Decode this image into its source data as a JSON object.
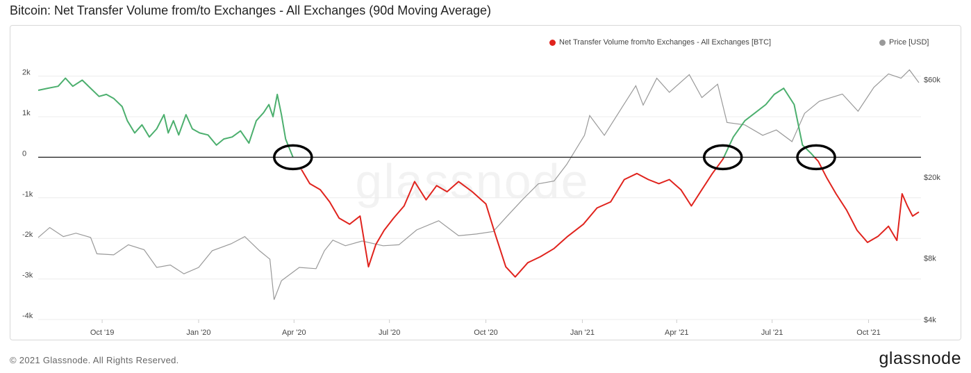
{
  "header": {
    "title": "Bitcoin: Net Transfer Volume from/to Exchanges - All Exchanges (90d Moving Average)"
  },
  "footer": {
    "copyright": "© 2021 Glassnode. All Rights Reserved.",
    "logo": "glassnode"
  },
  "watermark": "glassnode",
  "colors": {
    "positive": "#4caf6e",
    "negative": "#e0231d",
    "price": "#999999",
    "zero_line": "#1a1a1a",
    "circle": "#000000"
  },
  "chart_data": {
    "type": "line",
    "title": "Bitcoin: Net Transfer Volume from/to Exchanges - All Exchanges (90d Moving Average)",
    "legend": [
      {
        "name": "Net Transfer Volume from/to Exchanges - All Exchanges [BTC]",
        "color": "#e0231d"
      },
      {
        "name": "Price [USD]",
        "color": "#999999"
      }
    ],
    "legend_position": "top-right",
    "x_ticks": [
      "Oct '19",
      "Jan '20",
      "Apr '20",
      "Jul '20",
      "Oct '20",
      "Jan '21",
      "Apr '21",
      "Jul '21",
      "Oct '21"
    ],
    "x_tick_dates": [
      "2019-10-01",
      "2020-01-01",
      "2020-04-01",
      "2020-07-01",
      "2020-10-01",
      "2021-01-01",
      "2021-04-01",
      "2021-07-01",
      "2021-10-01"
    ],
    "xlim": [
      "2019-08-01",
      "2021-11-20"
    ],
    "y_left": {
      "ticks": [
        "2k",
        "1k",
        "0",
        "-1k",
        "-2k",
        "-3k",
        "-4k"
      ],
      "tick_values": [
        2000,
        1000,
        0,
        -1000,
        -2000,
        -3000,
        -4000
      ],
      "range": [
        -4000,
        2250
      ]
    },
    "y_right": {
      "ticks": [
        "$60k",
        "$20k",
        "$8k",
        "$4k"
      ],
      "tick_values": [
        60000,
        20000,
        8000,
        4000
      ],
      "scale": "log",
      "range": [
        4000,
        70000
      ]
    },
    "grid": true,
    "series": [
      {
        "name": "Net Transfer Volume from/to Exchanges - All Exchanges [BTC]",
        "axis": "left",
        "color_rule": "green above 0, red below 0",
        "points": [
          [
            "2019-08-01",
            1650
          ],
          [
            "2019-08-10",
            1700
          ],
          [
            "2019-08-20",
            1750
          ],
          [
            "2019-08-27",
            1950
          ],
          [
            "2019-09-03",
            1750
          ],
          [
            "2019-09-12",
            1900
          ],
          [
            "2019-09-20",
            1700
          ],
          [
            "2019-09-28",
            1500
          ],
          [
            "2019-10-05",
            1550
          ],
          [
            "2019-10-12",
            1450
          ],
          [
            "2019-10-20",
            1250
          ],
          [
            "2019-10-25",
            900
          ],
          [
            "2019-11-01",
            600
          ],
          [
            "2019-11-08",
            800
          ],
          [
            "2019-11-15",
            500
          ],
          [
            "2019-11-22",
            700
          ],
          [
            "2019-11-29",
            1050
          ],
          [
            "2019-12-03",
            600
          ],
          [
            "2019-12-08",
            900
          ],
          [
            "2019-12-13",
            550
          ],
          [
            "2019-12-20",
            1050
          ],
          [
            "2019-12-26",
            700
          ],
          [
            "2020-01-02",
            600
          ],
          [
            "2020-01-10",
            550
          ],
          [
            "2020-01-18",
            300
          ],
          [
            "2020-01-25",
            450
          ],
          [
            "2020-02-02",
            500
          ],
          [
            "2020-02-10",
            650
          ],
          [
            "2020-02-18",
            350
          ],
          [
            "2020-02-25",
            900
          ],
          [
            "2020-03-03",
            1100
          ],
          [
            "2020-03-08",
            1300
          ],
          [
            "2020-03-12",
            1000
          ],
          [
            "2020-03-16",
            1550
          ],
          [
            "2020-03-20",
            1050
          ],
          [
            "2020-03-24",
            450
          ],
          [
            "2020-03-31",
            0
          ],
          [
            "2020-04-08",
            -300
          ],
          [
            "2020-04-16",
            -650
          ],
          [
            "2020-04-26",
            -800
          ],
          [
            "2020-05-05",
            -1100
          ],
          [
            "2020-05-14",
            -1500
          ],
          [
            "2020-05-24",
            -1650
          ],
          [
            "2020-06-03",
            -1450
          ],
          [
            "2020-06-11",
            -2700
          ],
          [
            "2020-06-18",
            -2150
          ],
          [
            "2020-06-26",
            -1800
          ],
          [
            "2020-07-05",
            -1500
          ],
          [
            "2020-07-15",
            -1200
          ],
          [
            "2020-07-25",
            -600
          ],
          [
            "2020-08-05",
            -1050
          ],
          [
            "2020-08-15",
            -700
          ],
          [
            "2020-08-25",
            -850
          ],
          [
            "2020-09-05",
            -600
          ],
          [
            "2020-09-18",
            -850
          ],
          [
            "2020-10-01",
            -1150
          ],
          [
            "2020-10-10",
            -1900
          ],
          [
            "2020-10-20",
            -2700
          ],
          [
            "2020-10-29",
            -2950
          ],
          [
            "2020-11-10",
            -2600
          ],
          [
            "2020-11-22",
            -2450
          ],
          [
            "2020-12-05",
            -2250
          ],
          [
            "2020-12-18",
            -1950
          ],
          [
            "2021-01-02",
            -1650
          ],
          [
            "2021-01-15",
            -1250
          ],
          [
            "2021-01-28",
            -1100
          ],
          [
            "2021-02-10",
            -550
          ],
          [
            "2021-02-22",
            -400
          ],
          [
            "2021-03-05",
            -550
          ],
          [
            "2021-03-15",
            -650
          ],
          [
            "2021-03-25",
            -550
          ],
          [
            "2021-04-05",
            -800
          ],
          [
            "2021-04-15",
            -1200
          ],
          [
            "2021-04-25",
            -800
          ],
          [
            "2021-05-05",
            -400
          ],
          [
            "2021-05-15",
            -50
          ],
          [
            "2021-05-25",
            500
          ],
          [
            "2021-06-05",
            900
          ],
          [
            "2021-06-15",
            1100
          ],
          [
            "2021-06-25",
            1300
          ],
          [
            "2021-07-03",
            1550
          ],
          [
            "2021-07-12",
            1700
          ],
          [
            "2021-07-22",
            1300
          ],
          [
            "2021-07-30",
            300
          ],
          [
            "2021-08-07",
            100
          ],
          [
            "2021-08-14",
            -100
          ],
          [
            "2021-08-22",
            -500
          ],
          [
            "2021-08-31",
            -900
          ],
          [
            "2021-09-10",
            -1300
          ],
          [
            "2021-09-20",
            -1800
          ],
          [
            "2021-09-30",
            -2100
          ],
          [
            "2021-10-10",
            -1950
          ],
          [
            "2021-10-20",
            -1700
          ],
          [
            "2021-10-28",
            -2050
          ],
          [
            "2021-11-02",
            -900
          ],
          [
            "2021-11-07",
            -1200
          ],
          [
            "2021-11-12",
            -1450
          ],
          [
            "2021-11-18",
            -1350
          ]
        ]
      },
      {
        "name": "Price [USD]",
        "axis": "right",
        "points": [
          [
            "2019-08-01",
            10100
          ],
          [
            "2019-08-12",
            11300
          ],
          [
            "2019-08-25",
            10200
          ],
          [
            "2019-09-06",
            10600
          ],
          [
            "2019-09-20",
            10100
          ],
          [
            "2019-09-26",
            8400
          ],
          [
            "2019-10-12",
            8300
          ],
          [
            "2019-10-26",
            9300
          ],
          [
            "2019-11-10",
            8800
          ],
          [
            "2019-11-22",
            7200
          ],
          [
            "2019-12-05",
            7400
          ],
          [
            "2019-12-18",
            6700
          ],
          [
            "2020-01-01",
            7200
          ],
          [
            "2020-01-14",
            8700
          ],
          [
            "2020-02-01",
            9400
          ],
          [
            "2020-02-14",
            10200
          ],
          [
            "2020-02-28",
            8700
          ],
          [
            "2020-03-09",
            7900
          ],
          [
            "2020-03-13",
            5000
          ],
          [
            "2020-03-20",
            6200
          ],
          [
            "2020-04-06",
            7200
          ],
          [
            "2020-04-22",
            7100
          ],
          [
            "2020-04-30",
            8700
          ],
          [
            "2020-05-08",
            9800
          ],
          [
            "2020-05-20",
            9200
          ],
          [
            "2020-06-05",
            9700
          ],
          [
            "2020-06-25",
            9200
          ],
          [
            "2020-07-10",
            9300
          ],
          [
            "2020-07-27",
            11000
          ],
          [
            "2020-08-17",
            12200
          ],
          [
            "2020-09-05",
            10300
          ],
          [
            "2020-09-22",
            10500
          ],
          [
            "2020-10-08",
            10800
          ],
          [
            "2020-10-21",
            12800
          ],
          [
            "2020-11-05",
            15500
          ],
          [
            "2020-11-20",
            18500
          ],
          [
            "2020-12-05",
            19100
          ],
          [
            "2020-12-17",
            23000
          ],
          [
            "2021-01-03",
            32000
          ],
          [
            "2021-01-08",
            40000
          ],
          [
            "2021-01-22",
            32000
          ],
          [
            "2021-02-08",
            44000
          ],
          [
            "2021-02-21",
            56000
          ],
          [
            "2021-02-28",
            45000
          ],
          [
            "2021-03-13",
            61000
          ],
          [
            "2021-03-25",
            52000
          ],
          [
            "2021-04-13",
            63500
          ],
          [
            "2021-04-25",
            49000
          ],
          [
            "2021-05-10",
            57000
          ],
          [
            "2021-05-19",
            37000
          ],
          [
            "2021-06-05",
            36000
          ],
          [
            "2021-06-22",
            32000
          ],
          [
            "2021-07-05",
            34000
          ],
          [
            "2021-07-20",
            29800
          ],
          [
            "2021-08-01",
            41000
          ],
          [
            "2021-08-15",
            47000
          ],
          [
            "2021-09-06",
            51000
          ],
          [
            "2021-09-21",
            42000
          ],
          [
            "2021-10-06",
            55000
          ],
          [
            "2021-10-20",
            64000
          ],
          [
            "2021-11-01",
            61000
          ],
          [
            "2021-11-09",
            67000
          ],
          [
            "2021-11-18",
            58000
          ]
        ]
      }
    ],
    "annotations": [
      {
        "type": "circle",
        "date": "2020-03-31",
        "value": 0
      },
      {
        "type": "circle",
        "date": "2021-05-15",
        "value": 0
      },
      {
        "type": "circle",
        "date": "2021-08-12",
        "value": 0
      }
    ]
  }
}
